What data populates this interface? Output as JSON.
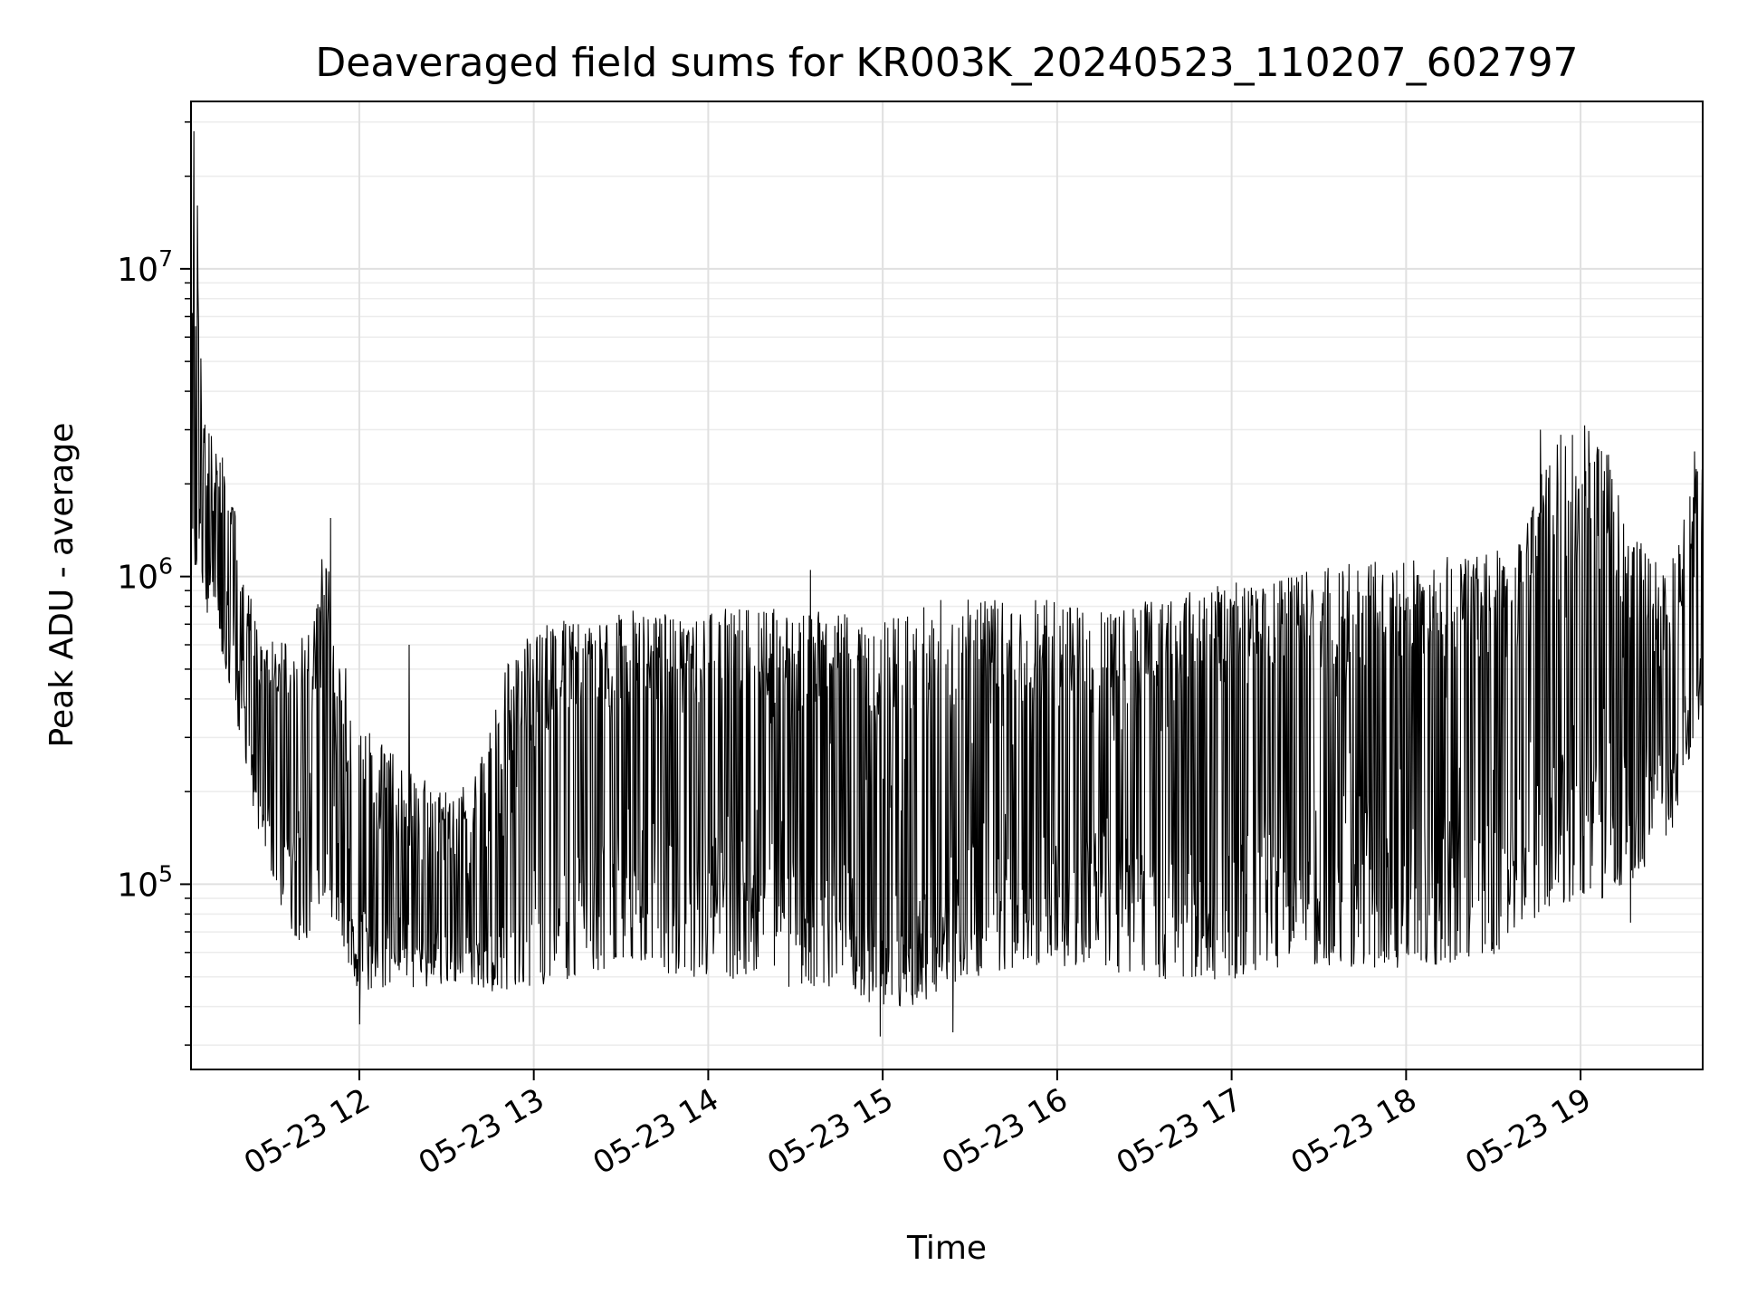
{
  "chart_data": {
    "type": "line",
    "title": "Deaveraged field sums for KR003K_20240523_110207_602797",
    "xlabel": "Time",
    "ylabel": "Peak ADU - average",
    "yscale": "log",
    "grid": true,
    "legend": "none",
    "xlim": [
      "2024-05-23T11:02:07",
      "2024-05-23T19:42:00"
    ],
    "ylim": [
      25000,
      35000000
    ],
    "x_ticks": [
      {
        "value": "2024-05-23T12:00",
        "label": "05-23 12"
      },
      {
        "value": "2024-05-23T13:00",
        "label": "05-23 13"
      },
      {
        "value": "2024-05-23T14:00",
        "label": "05-23 14"
      },
      {
        "value": "2024-05-23T15:00",
        "label": "05-23 15"
      },
      {
        "value": "2024-05-23T16:00",
        "label": "05-23 16"
      },
      {
        "value": "2024-05-23T17:00",
        "label": "05-23 17"
      },
      {
        "value": "2024-05-23T18:00",
        "label": "05-23 18"
      },
      {
        "value": "2024-05-23T19:00",
        "label": "05-23 19"
      }
    ],
    "y_ticks": [
      {
        "value": 100000,
        "mantissa": "10",
        "exponent": "5"
      },
      {
        "value": 1000000,
        "mantissa": "10",
        "exponent": "6"
      },
      {
        "value": 10000000,
        "mantissa": "10",
        "exponent": "7"
      }
    ],
    "series": [
      {
        "color": "#000000",
        "x": [
          "2024-05-23T11:02:07",
          "2024-05-23T11:04:00",
          "2024-05-23T11:06:00",
          "2024-05-23T11:10:00",
          "2024-05-23T11:15:00",
          "2024-05-23T11:20:00",
          "2024-05-23T11:25:00",
          "2024-05-23T11:30:00",
          "2024-05-23T11:35:00",
          "2024-05-23T11:40:00",
          "2024-05-23T11:45:00",
          "2024-05-23T11:48:00",
          "2024-05-23T11:52:00",
          "2024-05-23T11:56:00",
          "2024-05-23T12:00:00",
          "2024-05-23T12:10:00",
          "2024-05-23T12:20:00",
          "2024-05-23T12:30:00",
          "2024-05-23T12:40:00",
          "2024-05-23T12:50:00",
          "2024-05-23T13:00:00",
          "2024-05-23T13:10:00",
          "2024-05-23T13:20:00",
          "2024-05-23T13:30:00",
          "2024-05-23T13:40:00",
          "2024-05-23T13:50:00",
          "2024-05-23T14:00:00",
          "2024-05-23T14:15:00",
          "2024-05-23T14:30:00",
          "2024-05-23T14:45:00",
          "2024-05-23T14:55:00",
          "2024-05-23T15:00:00",
          "2024-05-23T15:10:00",
          "2024-05-23T15:20:00",
          "2024-05-23T15:30:00",
          "2024-05-23T15:45:00",
          "2024-05-23T16:00:00",
          "2024-05-23T16:15:00",
          "2024-05-23T16:30:00",
          "2024-05-23T16:45:00",
          "2024-05-23T17:00:00",
          "2024-05-23T17:15:00",
          "2024-05-23T17:30:00",
          "2024-05-23T17:45:00",
          "2024-05-23T18:00:00",
          "2024-05-23T18:15:00",
          "2024-05-23T18:30:00",
          "2024-05-23T18:40:00",
          "2024-05-23T18:50:00",
          "2024-05-23T19:00:00",
          "2024-05-23T19:10:00",
          "2024-05-23T19:20:00",
          "2024-05-23T19:30:00",
          "2024-05-23T19:42:00"
        ],
        "y_mid": [
          1500000,
          4000000,
          1600000,
          1300000,
          1200000,
          600000,
          380000,
          320000,
          300000,
          300000,
          280000,
          420000,
          200000,
          150000,
          110000,
          90000,
          85000,
          80000,
          85000,
          100000,
          150000,
          200000,
          250000,
          280000,
          300000,
          280000,
          260000,
          250000,
          240000,
          200000,
          110000,
          95000,
          110000,
          150000,
          200000,
          220000,
          200000,
          220000,
          250000,
          280000,
          300000,
          320000,
          330000,
          340000,
          330000,
          360000,
          370000,
          450000,
          500000,
          550000,
          500000,
          350000,
          300000,
          1000000
        ],
        "y_low": [
          1000000,
          1200000,
          900000,
          800000,
          500000,
          300000,
          150000,
          120000,
          80000,
          70000,
          80000,
          100000,
          80000,
          60000,
          50000,
          50000,
          50000,
          50000,
          50000,
          50000,
          50000,
          55000,
          55000,
          60000,
          60000,
          55000,
          55000,
          55000,
          50000,
          50000,
          45000,
          45000,
          45000,
          50000,
          55000,
          60000,
          60000,
          60000,
          55000,
          55000,
          55000,
          60000,
          60000,
          60000,
          60000,
          60000,
          65000,
          80000,
          90000,
          100000,
          100000,
          120000,
          150000,
          400000
        ],
        "y_high": [
          5000000,
          28000000,
          3000000,
          2500000,
          2000000,
          1000000,
          600000,
          550000,
          550000,
          600000,
          650000,
          1500000,
          500000,
          450000,
          300000,
          250000,
          200000,
          180000,
          200000,
          450000,
          600000,
          650000,
          650000,
          700000,
          700000,
          650000,
          700000,
          700000,
          700000,
          700000,
          600000,
          650000,
          700000,
          750000,
          750000,
          750000,
          750000,
          700000,
          750000,
          800000,
          850000,
          900000,
          950000,
          1000000,
          1000000,
          1050000,
          1100000,
          1200000,
          2500000,
          3000000,
          2200000,
          1200000,
          900000,
          2500000
        ],
        "spikes": [
          {
            "x": "2024-05-23T11:03:00",
            "y": 28000000
          },
          {
            "x": "2024-05-23T11:50:00",
            "y": 1550000
          },
          {
            "x": "2024-05-23T12:00:00",
            "y": 35000
          },
          {
            "x": "2024-05-23T12:17:00",
            "y": 600000
          },
          {
            "x": "2024-05-23T14:35:00",
            "y": 1050000
          },
          {
            "x": "2024-05-23T14:59:00",
            "y": 32000
          },
          {
            "x": "2024-05-23T15:24:00",
            "y": 33000
          },
          {
            "x": "2024-05-23T18:46:00",
            "y": 3000000
          },
          {
            "x": "2024-05-23T19:17:00",
            "y": 75000
          },
          {
            "x": "2024-05-23T19:39:00",
            "y": 2550000
          }
        ]
      }
    ]
  }
}
